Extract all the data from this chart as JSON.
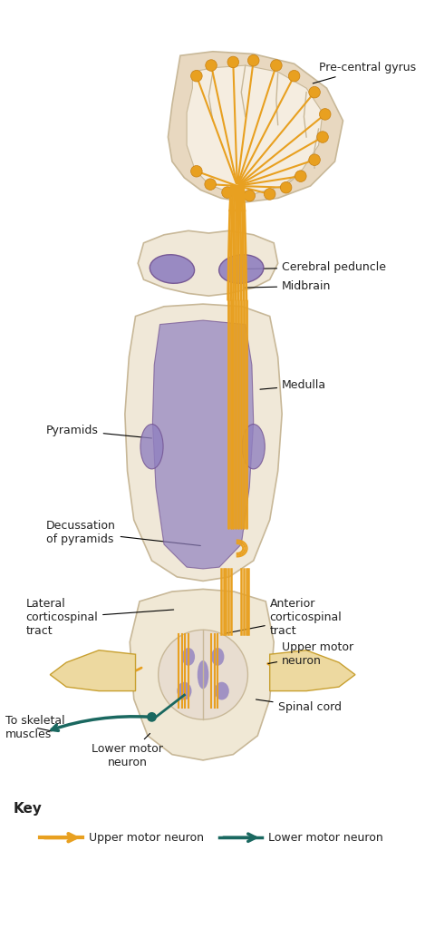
{
  "bg_color": "#ffffff",
  "golden": "#E8A020",
  "golden_light": "#F0C060",
  "golden_dark": "#C88010",
  "flesh": "#E8D8C0",
  "flesh_dark": "#C8B898",
  "flesh_light": "#F0E8D8",
  "purple": "#9080C0",
  "teal": "#1A6860",
  "label_color": "#222222",
  "key_upper": "Upper motor neuron",
  "key_lower": "Lower motor neuron",
  "labels": {
    "pre_central": "Pre-central gyrus",
    "cerebral_peduncle": "Cerebral peduncle",
    "midbrain": "Midbrain",
    "medulla": "Medulla",
    "pyramids": "Pyramids",
    "decussation": "Decussation\nof pyramids",
    "lateral_cst": "Lateral\ncorticospinal\ntract",
    "anterior_cst": "Anterior\ncorticospinal\ntract",
    "upper_motor": "Upper motor\nneuron",
    "spinal_cord": "Spinal cord",
    "to_skeletal": "To skeletal\nmuscles",
    "lower_motor": "Lower motor\nneuron"
  }
}
